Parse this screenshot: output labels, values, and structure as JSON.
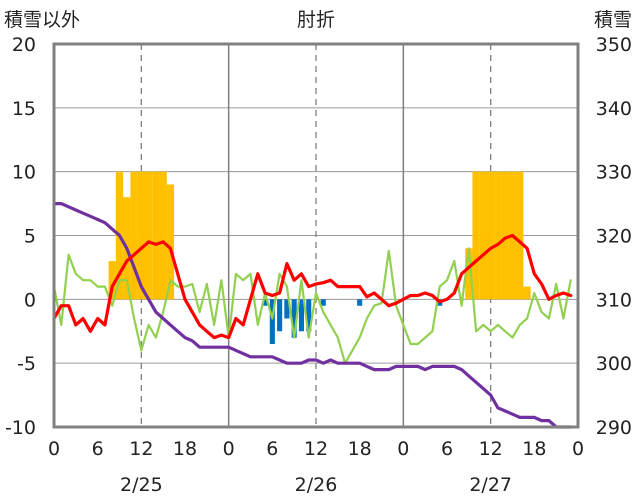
{
  "chart_data": {
    "type": "bar+line",
    "title": "肘折",
    "ylabel_left": "積雪以外",
    "ylabel_right": "積雪",
    "ylim_left": [
      -10,
      20
    ],
    "ylim_right": [
      290,
      350
    ],
    "y_ticks_left": [
      "-10",
      "-5",
      "0",
      "5",
      "10",
      "15",
      "20"
    ],
    "y_ticks_right": [
      "290",
      "300",
      "310",
      "320",
      "330",
      "340",
      "350"
    ],
    "x_ticks": [
      "0",
      "6",
      "12",
      "18",
      "0",
      "6",
      "12",
      "18",
      "0",
      "6",
      "12",
      "18",
      "0"
    ],
    "date_labels": [
      "2/25",
      "2/26",
      "2/27"
    ],
    "grid": true,
    "colors": {
      "snowfall_bar": "#FFC000",
      "precip_bar": "#0070C0",
      "temperature": "#FF0000",
      "wind": "#92D050",
      "snow_depth": "#7030A0",
      "frame": "#808080"
    },
    "snowfall_bars": [
      {
        "x": 8,
        "value": 3
      },
      {
        "x": 9,
        "value": 10
      },
      {
        "x": 10,
        "value": 8
      },
      {
        "x": 11,
        "value": 10
      },
      {
        "x": 12,
        "value": 10
      },
      {
        "x": 13,
        "value": 10
      },
      {
        "x": 14,
        "value": 10
      },
      {
        "x": 15,
        "value": 10
      },
      {
        "x": 16,
        "value": 9
      },
      {
        "x": 57,
        "value": 4
      },
      {
        "x": 58,
        "value": 10
      },
      {
        "x": 59,
        "value": 10
      },
      {
        "x": 60,
        "value": 10
      },
      {
        "x": 61,
        "value": 10
      },
      {
        "x": 62,
        "value": 10
      },
      {
        "x": 63,
        "value": 10
      },
      {
        "x": 64,
        "value": 10
      },
      {
        "x": 65,
        "value": 1
      }
    ],
    "precip_bars": [
      {
        "x": 29,
        "value": -0.5
      },
      {
        "x": 30,
        "value": -3.5
      },
      {
        "x": 31,
        "value": -2.5
      },
      {
        "x": 32,
        "value": -1.5
      },
      {
        "x": 33,
        "value": -3
      },
      {
        "x": 34,
        "value": -2.5
      },
      {
        "x": 35,
        "value": -2.5
      },
      {
        "x": 37,
        "value": -0.5
      },
      {
        "x": 42,
        "value": -0.5
      },
      {
        "x": 53,
        "value": -0.5
      }
    ],
    "temperature": [
      [
        0,
        -1.5
      ],
      [
        1,
        -0.5
      ],
      [
        2,
        -0.5
      ],
      [
        3,
        -2
      ],
      [
        4,
        -1.5
      ],
      [
        5,
        -2.5
      ],
      [
        6,
        -1.5
      ],
      [
        7,
        -2
      ],
      [
        8,
        1
      ],
      [
        9,
        2
      ],
      [
        10,
        3
      ],
      [
        11,
        3.5
      ],
      [
        12,
        4
      ],
      [
        13,
        4.5
      ],
      [
        14,
        4.3
      ],
      [
        15,
        4.5
      ],
      [
        16,
        4
      ],
      [
        17,
        2
      ],
      [
        18,
        0
      ],
      [
        19,
        -1
      ],
      [
        20,
        -2
      ],
      [
        21,
        -2.5
      ],
      [
        22,
        -3
      ],
      [
        23,
        -2.8
      ],
      [
        24,
        -3
      ],
      [
        25,
        -1.5
      ],
      [
        26,
        -2
      ],
      [
        27,
        0
      ],
      [
        28,
        2
      ],
      [
        29,
        0.5
      ],
      [
        30,
        0.3
      ],
      [
        31,
        0.5
      ],
      [
        32,
        2.8
      ],
      [
        33,
        1.5
      ],
      [
        34,
        2
      ],
      [
        35,
        1
      ],
      [
        36,
        1.2
      ],
      [
        37,
        1.3
      ],
      [
        38,
        1.5
      ],
      [
        39,
        1
      ],
      [
        40,
        1
      ],
      [
        41,
        1
      ],
      [
        42,
        1
      ],
      [
        43,
        0.2
      ],
      [
        44,
        0.5
      ],
      [
        45,
        0
      ],
      [
        46,
        -0.5
      ],
      [
        47,
        -0.3
      ],
      [
        48,
        0
      ],
      [
        49,
        0.3
      ],
      [
        50,
        0.3
      ],
      [
        51,
        0.5
      ],
      [
        52,
        0.3
      ],
      [
        53,
        -0.2
      ],
      [
        54,
        0
      ],
      [
        55,
        0.5
      ],
      [
        56,
        2
      ],
      [
        57,
        2.5
      ],
      [
        58,
        3
      ],
      [
        59,
        3.5
      ],
      [
        60,
        4
      ],
      [
        61,
        4.3
      ],
      [
        62,
        4.8
      ],
      [
        63,
        5
      ],
      [
        64,
        4.5
      ],
      [
        65,
        4
      ],
      [
        66,
        2
      ],
      [
        67,
        1.2
      ],
      [
        68,
        0
      ],
      [
        69,
        0.3
      ],
      [
        70,
        0.5
      ],
      [
        71,
        0.3
      ]
    ],
    "wind": [
      [
        0,
        1
      ],
      [
        1,
        -2
      ],
      [
        2,
        3.5
      ],
      [
        3,
        2
      ],
      [
        4,
        1.5
      ],
      [
        5,
        1.5
      ],
      [
        6,
        1
      ],
      [
        7,
        1
      ],
      [
        8,
        -0.5
      ],
      [
        9,
        1.5
      ],
      [
        10,
        1.5
      ],
      [
        11,
        -1.5
      ],
      [
        12,
        -4
      ],
      [
        13,
        -2
      ],
      [
        14,
        -3
      ],
      [
        15,
        -1
      ],
      [
        16,
        1.5
      ],
      [
        17,
        1
      ],
      [
        18,
        1
      ],
      [
        19,
        1.2
      ],
      [
        20,
        -1
      ],
      [
        21,
        1.2
      ],
      [
        22,
        -2
      ],
      [
        23,
        1.5
      ],
      [
        24,
        -3
      ],
      [
        25,
        2
      ],
      [
        26,
        1.5
      ],
      [
        27,
        2
      ],
      [
        28,
        -2
      ],
      [
        29,
        0.5
      ],
      [
        30,
        -1.5
      ],
      [
        31,
        2
      ],
      [
        32,
        1
      ],
      [
        33,
        -3
      ],
      [
        34,
        1.5
      ],
      [
        35,
        -3
      ],
      [
        36,
        0.5
      ],
      [
        37,
        -1
      ],
      [
        38,
        -2
      ],
      [
        39,
        -3
      ],
      [
        40,
        -5
      ],
      [
        41,
        -4
      ],
      [
        42,
        -3
      ],
      [
        43,
        -1.5
      ],
      [
        44,
        -0.5
      ],
      [
        45,
        -0.3
      ],
      [
        46,
        3.8
      ],
      [
        47,
        -0.5
      ],
      [
        48,
        -2
      ],
      [
        49,
        -3.5
      ],
      [
        50,
        -3.5
      ],
      [
        51,
        -3
      ],
      [
        52,
        -2.5
      ],
      [
        53,
        1
      ],
      [
        54,
        1.5
      ],
      [
        55,
        3
      ],
      [
        56,
        -0.5
      ],
      [
        57,
        4
      ],
      [
        58,
        -2.5
      ],
      [
        59,
        -2
      ],
      [
        60,
        -2.5
      ],
      [
        61,
        -2
      ],
      [
        62,
        -2.5
      ],
      [
        63,
        -3
      ],
      [
        64,
        -2
      ],
      [
        65,
        -1.5
      ],
      [
        66,
        0.5
      ],
      [
        67,
        -1
      ],
      [
        68,
        -1.5
      ],
      [
        69,
        1.2
      ],
      [
        70,
        -1.5
      ],
      [
        71,
        1.5
      ]
    ],
    "snow_depth": [
      [
        0,
        325
      ],
      [
        1,
        325
      ],
      [
        2,
        324.5
      ],
      [
        3,
        324
      ],
      [
        4,
        323.5
      ],
      [
        5,
        323
      ],
      [
        6,
        322.5
      ],
      [
        7,
        322
      ],
      [
        8,
        321
      ],
      [
        9,
        320
      ],
      [
        10,
        318
      ],
      [
        11,
        315
      ],
      [
        12,
        312
      ],
      [
        13,
        310
      ],
      [
        14,
        308
      ],
      [
        15,
        307
      ],
      [
        16,
        306
      ],
      [
        17,
        305
      ],
      [
        18,
        304
      ],
      [
        19,
        303.5
      ],
      [
        20,
        302.5
      ],
      [
        21,
        302.5
      ],
      [
        22,
        302.5
      ],
      [
        23,
        302.5
      ],
      [
        24,
        302.5
      ],
      [
        25,
        302
      ],
      [
        26,
        301.5
      ],
      [
        27,
        301
      ],
      [
        28,
        301
      ],
      [
        29,
        301
      ],
      [
        30,
        301
      ],
      [
        31,
        300.5
      ],
      [
        32,
        300
      ],
      [
        33,
        300
      ],
      [
        34,
        300
      ],
      [
        35,
        300.5
      ],
      [
        36,
        300.5
      ],
      [
        37,
        300
      ],
      [
        38,
        300.5
      ],
      [
        39,
        300
      ],
      [
        40,
        300
      ],
      [
        41,
        300
      ],
      [
        42,
        300
      ],
      [
        43,
        299.5
      ],
      [
        44,
        299
      ],
      [
        45,
        299
      ],
      [
        46,
        299
      ],
      [
        47,
        299.5
      ],
      [
        48,
        299.5
      ],
      [
        49,
        299.5
      ],
      [
        50,
        299.5
      ],
      [
        51,
        299
      ],
      [
        52,
        299.5
      ],
      [
        53,
        299.5
      ],
      [
        54,
        299.5
      ],
      [
        55,
        299.5
      ],
      [
        56,
        299
      ],
      [
        57,
        298
      ],
      [
        58,
        297
      ],
      [
        59,
        296
      ],
      [
        60,
        295
      ],
      [
        61,
        293
      ],
      [
        62,
        292.5
      ],
      [
        63,
        292
      ],
      [
        64,
        291.5
      ],
      [
        65,
        291.5
      ],
      [
        66,
        291.5
      ],
      [
        67,
        291
      ],
      [
        68,
        291
      ],
      [
        69,
        290
      ],
      [
        70,
        290
      ],
      [
        71,
        290
      ]
    ]
  }
}
